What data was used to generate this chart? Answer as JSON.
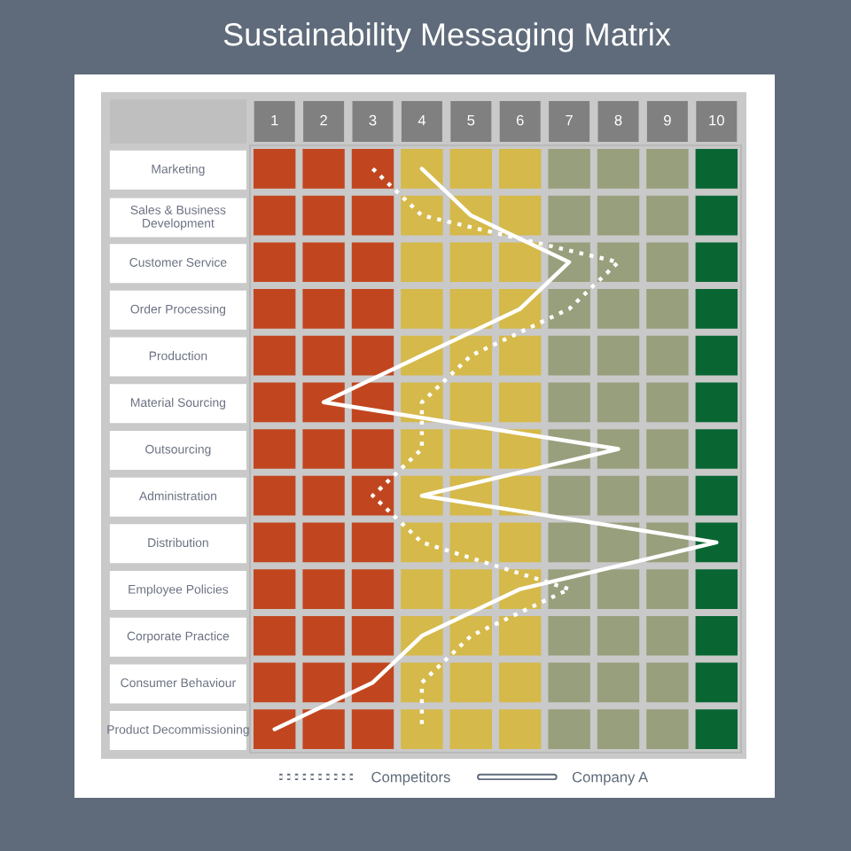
{
  "chart_data": {
    "type": "line",
    "orientation": "horizontal",
    "title": "Sustainability Messaging Matrix",
    "categories": [
      "Marketing",
      "Sales & Business\nDevelopment",
      "Customer Service",
      "Order Processing",
      "Production",
      "Material Sourcing",
      "Outsourcing",
      "Administration",
      "Distribution",
      "Employee Policies",
      "Corporate Practice",
      "Consumer Behaviour",
      "Product Decommissioning"
    ],
    "series": [
      {
        "name": "Competitors",
        "color": "#ffffff",
        "line_style": "dotted",
        "values": [
          3,
          4,
          8,
          7,
          5,
          4,
          4,
          3,
          4,
          7,
          5,
          4,
          4
        ]
      },
      {
        "name": "Company A",
        "color": "#ffffff",
        "line_style": "solid",
        "values": [
          4,
          5,
          7,
          6,
          4,
          2,
          8,
          4,
          10,
          6,
          4,
          3,
          1
        ]
      }
    ],
    "xlim": [
      0.5,
      10.5
    ],
    "xticks": [
      1,
      2,
      3,
      4,
      5,
      6,
      7,
      8,
      9,
      10
    ],
    "bands": [
      {
        "axis": "x",
        "from": 0.5,
        "to": 3.5,
        "color": "#c1461f"
      },
      {
        "axis": "x",
        "from": 3.5,
        "to": 6.5,
        "color": "#d5b94a"
      },
      {
        "axis": "x",
        "from": 6.5,
        "to": 9.5,
        "color": "#989f7c"
      },
      {
        "axis": "x",
        "from": 9.5,
        "to": 10.5,
        "color": "#096633"
      }
    ],
    "marker": "none",
    "legend": "bottom"
  }
}
